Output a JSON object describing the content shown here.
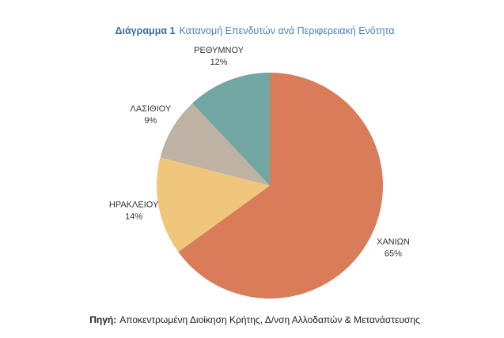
{
  "chart_data": {
    "type": "pie",
    "title_label": "Διάγραμμα  1",
    "title": "Κατανομή Επενδυτών ανά Περιφερειακή Ενότητα",
    "categories": [
      "ΧΑΝΙΩΝ",
      "ΗΡΑΚΛΕΙΟΥ",
      "ΛΑΣΙΘΙΟΥ",
      "ΡΕΘΥΜΝΟΥ"
    ],
    "values": [
      65,
      14,
      9,
      12
    ],
    "value_labels": [
      "65%",
      "14%",
      "9%",
      "12%"
    ],
    "colors": [
      "#d97c5a",
      "#f0c57c",
      "#bdb2a4",
      "#72a6a3"
    ],
    "source_label": "Πηγή:",
    "source": "Αποκεντρωμένη Διοίκηση Κρήτης, Δ/νση Αλλοδαπών & Μετανάστευσης"
  }
}
